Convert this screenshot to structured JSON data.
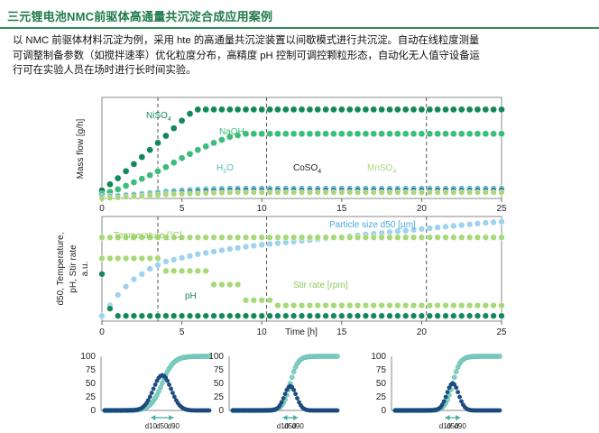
{
  "header": {
    "title": "三元锂电池NMC前驱体高通量共沉淀合成应用案例"
  },
  "description": {
    "lines": [
      "以 NMC 前驱体材料沉淀为例，采用 hte 的高通量共沉淀装置以间歇模式进行共沉淀。自动在线粒度测量",
      "可调整制备参数（如搅拌速率）优化粒度分布，高精度 pH 控制可调控颗粒形态，自动化无人值守设备运",
      "行可在实验人员在场时进行长时间实验。"
    ]
  },
  "colors": {
    "dark_green": "#13885a",
    "mid_green": "#3cbd7a",
    "teal": "#4dc3b4",
    "light_green": "#a8d977",
    "light_blue": "#9fd2ec",
    "blue_dark": "#1b5fa0",
    "dash": "#555555"
  },
  "chart_data": [
    {
      "type": "line",
      "ylabel": "Mass flow [g/h]",
      "xlim": [
        0,
        25
      ],
      "xticks": [
        "0",
        "5",
        "10",
        "15",
        "20",
        "25"
      ],
      "vlines": [
        3.5,
        10.3,
        20.3
      ],
      "series": [
        {
          "name": "NiSO4",
          "label_main": "NiSO",
          "label_sub": "4",
          "color": "#13885a",
          "x": [
            0,
            1,
            2,
            3,
            4,
            5,
            5.8,
            7,
            10,
            15,
            20,
            25
          ],
          "y": [
            0.08,
            0.2,
            0.34,
            0.48,
            0.62,
            0.77,
            0.88,
            0.88,
            0.88,
            0.88,
            0.88,
            0.88
          ]
        },
        {
          "name": "NaOH",
          "label_main": "NaOH",
          "label_sub": "",
          "color": "#3cbd7a",
          "x": [
            0,
            1,
            2,
            3,
            4,
            5,
            6,
            7,
            8,
            9,
            10,
            15,
            20,
            25
          ],
          "y": [
            0.04,
            0.09,
            0.16,
            0.23,
            0.31,
            0.4,
            0.48,
            0.55,
            0.61,
            0.64,
            0.64,
            0.64,
            0.64,
            0.64
          ]
        },
        {
          "name": "H2O",
          "label_main": "H",
          "label_sub": "2",
          "label_tail": "O",
          "color": "#4dc3b4",
          "x": [
            0,
            2,
            4,
            6,
            8,
            10,
            15,
            20,
            25
          ],
          "y": [
            0.02,
            0.04,
            0.07,
            0.09,
            0.1,
            0.1,
            0.1,
            0.1,
            0.1
          ]
        },
        {
          "name": "CoSO4",
          "label_main": "CoSO",
          "label_sub": "4",
          "color": "#1b5fa0",
          "x": [
            0,
            2,
            4,
            6,
            8,
            10,
            15,
            20,
            25
          ],
          "y": [
            0.01,
            0.03,
            0.05,
            0.07,
            0.08,
            0.08,
            0.08,
            0.08,
            0.08
          ]
        },
        {
          "name": "MnSO4",
          "label_main": "MnSO",
          "label_sub": "4",
          "color": "#a8d977",
          "x": [
            0,
            2,
            4,
            6,
            8,
            10,
            15,
            20,
            25
          ],
          "y": [
            0.0,
            0.02,
            0.04,
            0.05,
            0.06,
            0.06,
            0.06,
            0.06,
            0.06
          ]
        }
      ]
    },
    {
      "type": "line",
      "ylabel_lines": [
        "d50, Temperature,",
        "pH, Stir rate",
        "a.u."
      ],
      "ylabel_sub": "50",
      "xlabel": "Time [h]",
      "xlim": [
        0,
        25
      ],
      "xticks": [
        "0",
        "5",
        "10",
        "15",
        "20",
        "25"
      ],
      "vlines": [
        3.5,
        10.3,
        20.3
      ],
      "series": [
        {
          "name": "Particle size d50 [µm]",
          "color": "#9fd2ec",
          "x": [
            0,
            0.5,
            1,
            1.5,
            2,
            3,
            4,
            6,
            8,
            10,
            12,
            14,
            16,
            18,
            20,
            22,
            24,
            25
          ],
          "y": [
            0.05,
            0.15,
            0.25,
            0.33,
            0.4,
            0.5,
            0.57,
            0.64,
            0.69,
            0.73,
            0.76,
            0.79,
            0.82,
            0.85,
            0.88,
            0.91,
            0.94,
            0.95
          ]
        },
        {
          "name": "Temperature [°C]",
          "color": "#a8d977",
          "x": [
            0,
            25
          ],
          "y": [
            0.8,
            0.8
          ]
        },
        {
          "name": "Stir rate [rpm]",
          "color": "#a8d977",
          "x": [
            0,
            3.5,
            3.5,
            6.5,
            6.5,
            8.5,
            8.5,
            10.5,
            10.5,
            20,
            22,
            25
          ],
          "y": [
            0.6,
            0.6,
            0.48,
            0.48,
            0.35,
            0.35,
            0.2,
            0.2,
            0.15,
            0.15,
            0.15,
            0.15
          ]
        },
        {
          "name": "pH",
          "color": "#13885a",
          "x": [
            0,
            0.3,
            0.6,
            1,
            2,
            5,
            10,
            15,
            20,
            25
          ],
          "y": [
            0.45,
            0.2,
            0.08,
            0.05,
            0.05,
            0.05,
            0.05,
            0.05,
            0.05,
            0.05
          ]
        }
      ]
    },
    {
      "type": "line",
      "panel": "psd",
      "yticks": [
        "100",
        "75",
        "50",
        "25",
        "0"
      ],
      "xlabels": [
        "d10",
        "d50",
        "d90"
      ],
      "distribution_peak": 65,
      "peak_position": 0.55,
      "width": 0.12
    },
    {
      "type": "line",
      "panel": "psd",
      "yticks": [
        "100",
        "75",
        "50",
        "25",
        "0"
      ],
      "xlabels": [
        "d10",
        "d50",
        "d90"
      ],
      "distribution_peak": 45,
      "peak_position": 0.55,
      "width": 0.08
    },
    {
      "type": "line",
      "panel": "psd",
      "yticks": [
        "100",
        "75",
        "50",
        "25",
        "0"
      ],
      "xlabels": [
        "d10",
        "d50",
        "d90"
      ],
      "distribution_peak": 50,
      "peak_position": 0.55,
      "width": 0.08
    }
  ]
}
